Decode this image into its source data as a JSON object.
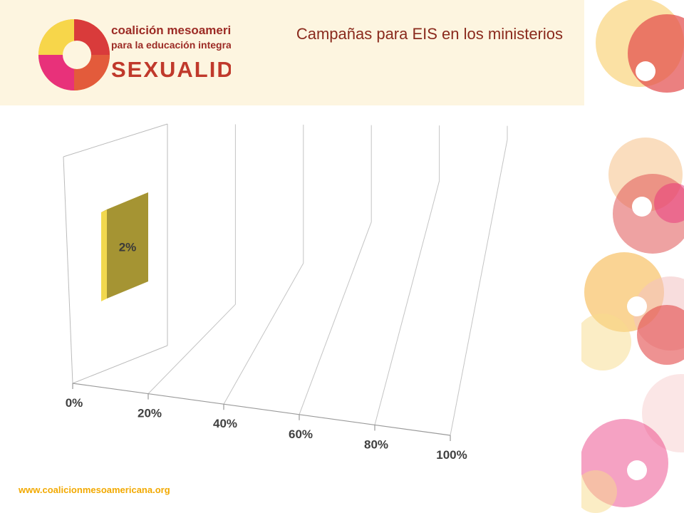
{
  "header": {
    "title": "Campañas para EIS en los ministerios",
    "logo_lines": [
      "coalición mesoamericana",
      "para la educación integral en",
      "SEXUALIDAD"
    ]
  },
  "footer": {
    "url": "www.coalicionmesoamericana.org"
  },
  "colors": {
    "title": "#8a2a1d",
    "bar_front": "#a59433",
    "bar_side": "#f2d84e",
    "bar_top": "#c8b33f",
    "header_bg": "#fdf5e0",
    "footer": "#f2a900"
  },
  "chart_data": {
    "type": "bar",
    "orientation": "horizontal",
    "style": "3d",
    "categories": [
      ""
    ],
    "values": [
      0.02
    ],
    "data_labels": [
      "2%"
    ],
    "xlim": [
      0,
      1
    ],
    "tick_labels": [
      "0%",
      "20%",
      "40%",
      "60%",
      "80%",
      "100%"
    ],
    "title": "",
    "xlabel": "",
    "ylabel": "",
    "grid": true,
    "legend": "none"
  }
}
